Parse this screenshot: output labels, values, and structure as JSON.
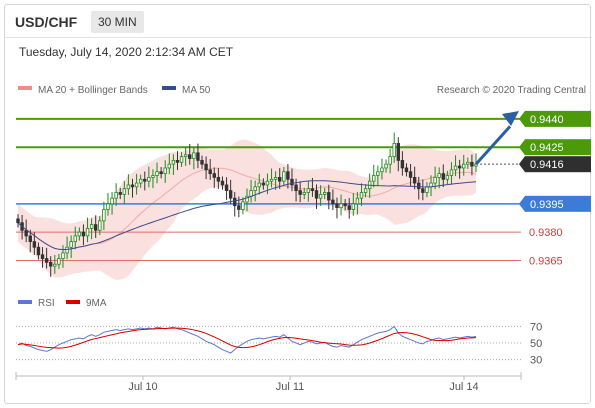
{
  "header": {
    "pair": "USD/CHF",
    "timeframe": "30 MIN"
  },
  "date_label": "Tuesday, July 14, 2020 2:12:34 AM CET",
  "legend": {
    "ma20": "MA 20 + Bollinger Bands",
    "ma50": "MA 50",
    "credit": "Research © 2020 Trading Central"
  },
  "rsi_legend": {
    "rsi": "RSI",
    "ma9": "9MA"
  },
  "colors": {
    "bull": "#1d8a1d",
    "bear": "#333333",
    "resistance": "#4a9a0a",
    "pivot": "#3d7bd8",
    "support": "#e26b6b",
    "bollinger": "#f9d6d6",
    "ma50": "#3b4c8c",
    "arrow": "#2b5f9e",
    "current_price": "#2f2f2f"
  },
  "chart_data": [
    {
      "type": "candlestick",
      "title": "USD/CHF",
      "x_ticks": [
        "Jul 10",
        "Jul 11",
        "Jul 14"
      ],
      "ylim": [
        0.9352,
        0.945
      ],
      "levels": [
        {
          "value": 0.944,
          "label": "0.9440",
          "kind": "resistance"
        },
        {
          "value": 0.9425,
          "label": "0.9425",
          "kind": "resistance"
        },
        {
          "value": 0.9416,
          "label": "0.9416",
          "kind": "current"
        },
        {
          "value": 0.9395,
          "label": "0.9395",
          "kind": "pivot"
        },
        {
          "value": 0.938,
          "label": "0.9380",
          "kind": "support"
        },
        {
          "value": 0.9365,
          "label": "0.9365",
          "kind": "support"
        }
      ],
      "closes": [
        0.9385,
        0.9381,
        0.9378,
        0.9375,
        0.9372,
        0.9368,
        0.9366,
        0.9364,
        0.9362,
        0.9363,
        0.9366,
        0.9369,
        0.9372,
        0.9375,
        0.9378,
        0.938,
        0.9378,
        0.9382,
        0.9384,
        0.9381,
        0.9386,
        0.9392,
        0.9395,
        0.9398,
        0.9401,
        0.94,
        0.9403,
        0.9405,
        0.9404,
        0.9406,
        0.9408,
        0.9407,
        0.9409,
        0.941,
        0.9412,
        0.9411,
        0.9414,
        0.9416,
        0.9418,
        0.9417,
        0.942,
        0.9421,
        0.9419,
        0.9422,
        0.9418,
        0.9416,
        0.9413,
        0.9411,
        0.9409,
        0.9407,
        0.9405,
        0.9402,
        0.9398,
        0.9394,
        0.9392,
        0.9396,
        0.9399,
        0.9402,
        0.9404,
        0.9406,
        0.9405,
        0.9407,
        0.9408,
        0.9409,
        0.9407,
        0.9412,
        0.9408,
        0.9405,
        0.9402,
        0.94,
        0.9401,
        0.9403,
        0.9402,
        0.9398,
        0.94,
        0.9401,
        0.9397,
        0.9395,
        0.9393,
        0.9395,
        0.9394,
        0.9392,
        0.9395,
        0.9398,
        0.9401,
        0.9403,
        0.9407,
        0.941,
        0.9412,
        0.9414,
        0.9416,
        0.942,
        0.9427,
        0.9418,
        0.9414,
        0.9412,
        0.9409,
        0.9406,
        0.9403,
        0.9401,
        0.9404,
        0.9406,
        0.9409,
        0.9411,
        0.9408,
        0.941,
        0.9413,
        0.9415,
        0.9414,
        0.9416,
        0.9417,
        0.9415,
        0.9416
      ],
      "rsi": [
        48,
        50,
        47,
        46,
        44,
        42,
        41,
        40,
        42,
        45,
        48,
        50,
        52,
        54,
        55,
        56,
        55,
        58,
        60,
        58,
        60,
        63,
        64,
        65,
        66,
        65,
        66,
        67,
        66,
        67,
        68,
        67,
        68,
        67,
        69,
        68,
        67,
        68,
        69,
        67,
        66,
        64,
        62,
        60,
        58,
        55,
        52,
        50,
        48,
        45,
        42,
        40,
        38,
        42,
        46,
        49,
        52,
        54,
        55,
        56,
        55,
        56,
        57,
        58,
        57,
        60,
        56,
        52,
        50,
        48,
        50,
        52,
        51,
        49,
        50,
        51,
        48,
        46,
        45,
        47,
        46,
        45,
        48,
        51,
        54,
        56,
        58,
        60,
        62,
        63,
        64,
        66,
        70,
        62,
        58,
        56,
        54,
        52,
        50,
        49,
        52,
        53,
        55,
        56,
        54,
        55,
        56,
        57,
        56,
        57,
        58,
        57,
        58
      ],
      "rsi_ylim": [
        20,
        80
      ],
      "rsi_ticks": [
        70,
        50,
        30
      ],
      "rsi_legend": [
        "RSI",
        "9MA"
      ]
    }
  ]
}
